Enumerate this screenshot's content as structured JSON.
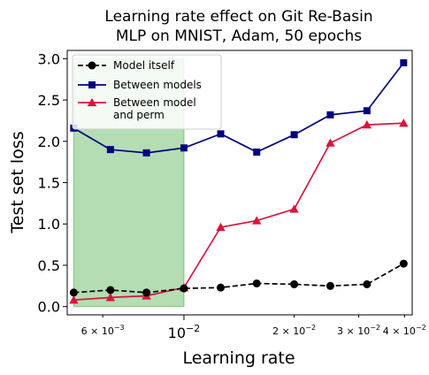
{
  "chart_data": {
    "type": "line",
    "title_lines": [
      "Learning rate effect on Git Re-Basin",
      "MLP on MNIST, Adam, 50 epochs"
    ],
    "xlabel": "Learning rate",
    "ylabel": "Test set loss",
    "x_scale": "log",
    "xlim": [
      0.0048,
      0.042
    ],
    "ylim": [
      -0.1,
      3.1
    ],
    "x": [
      0.005,
      0.0063,
      0.0079,
      0.01,
      0.0126,
      0.0158,
      0.02,
      0.0251,
      0.0316,
      0.0398
    ],
    "series": [
      {
        "name": "Model itself",
        "color": "#000000",
        "marker": "circle",
        "line_style": "dashed",
        "values": [
          0.17,
          0.2,
          0.17,
          0.22,
          0.23,
          0.28,
          0.27,
          0.25,
          0.27,
          0.52
        ]
      },
      {
        "name": "Between models",
        "color": "#00007f",
        "marker": "square",
        "line_style": "solid",
        "values": [
          2.16,
          1.9,
          1.86,
          1.92,
          2.09,
          1.87,
          2.08,
          2.32,
          2.37,
          2.95
        ]
      },
      {
        "name": "Between model and perm",
        "name_lines": [
          "Between model",
          "and perm"
        ],
        "color": "#dc143c",
        "marker": "triangle",
        "line_style": "solid",
        "values": [
          0.08,
          0.11,
          0.13,
          0.23,
          0.96,
          1.04,
          1.18,
          1.98,
          2.2,
          2.22
        ]
      }
    ],
    "highlight_band": {
      "x_range": [
        0.005,
        0.01
      ],
      "y_range": [
        0.0,
        3.0
      ],
      "color": "#4daf4a"
    },
    "y_ticks": [
      "0.0",
      "0.5",
      "1.0",
      "1.5",
      "2.0",
      "2.5",
      "3.0"
    ],
    "y_tick_values": [
      0.0,
      0.5,
      1.0,
      1.5,
      2.0,
      2.5,
      3.0
    ],
    "x_ticks": [
      {
        "value": 0.006,
        "base": "6 × 10",
        "exp": "−3",
        "kind": "minor"
      },
      {
        "value": 0.01,
        "base": "10",
        "exp": "−2",
        "kind": "major"
      },
      {
        "value": 0.02,
        "base": "2 × 10",
        "exp": "−2",
        "kind": "minor"
      },
      {
        "value": 0.03,
        "base": "3 × 10",
        "exp": "−2",
        "kind": "minor"
      },
      {
        "value": 0.04,
        "base": "4 × 10",
        "exp": "−2",
        "kind": "minor"
      }
    ],
    "grid": false,
    "legend_position": "top-left"
  }
}
